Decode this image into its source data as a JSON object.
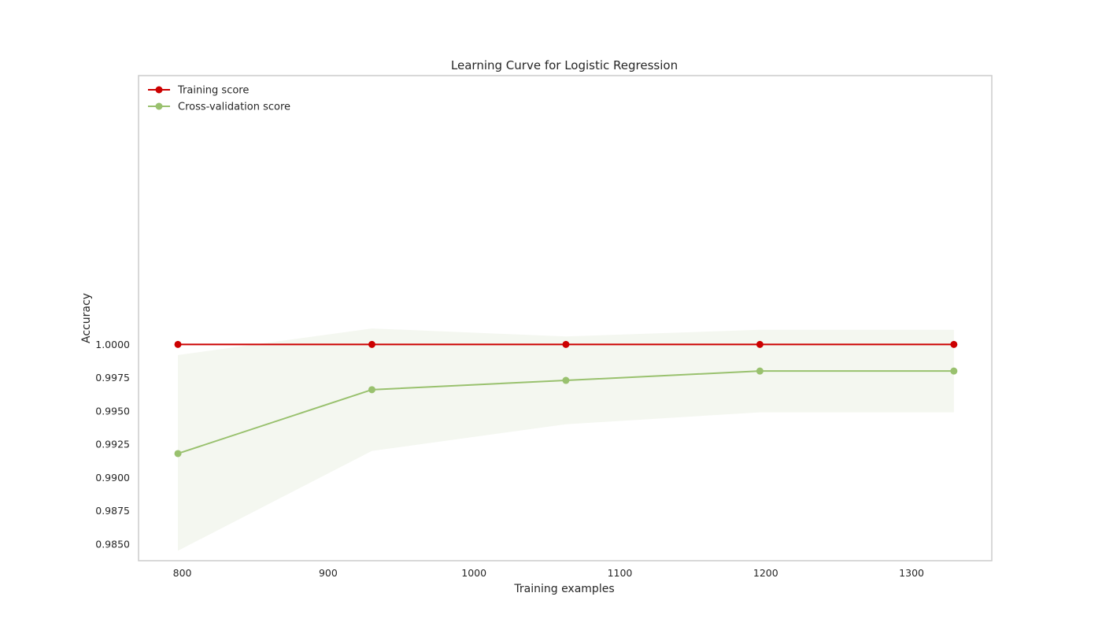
{
  "chart_data": {
    "type": "line",
    "title": "Learning Curve for Logistic Regression",
    "xlabel": "Training examples",
    "ylabel": "Accuracy",
    "xlim": [
      770,
      1355
    ],
    "ylim": [
      0.98375,
      1.0202
    ],
    "xticks": [
      800,
      900,
      1000,
      1100,
      1200,
      1300
    ],
    "xtick_labels": [
      "800",
      "900",
      "1000",
      "1100",
      "1200",
      "1300"
    ],
    "yticks": [
      0.985,
      0.9875,
      0.99,
      0.9925,
      0.995,
      0.9975,
      1.0
    ],
    "ytick_labels": [
      "0.9850",
      "0.9875",
      "0.9900",
      "0.9925",
      "0.9950",
      "0.9975",
      "1.0000"
    ],
    "grid": false,
    "legend_position": "top-left",
    "x": [
      797,
      930,
      1063,
      1196,
      1329
    ],
    "series": [
      {
        "name": "Training score",
        "color": "#cc0000",
        "values": [
          1.0,
          1.0,
          1.0,
          1.0,
          1.0
        ],
        "band_lower": [
          1.0,
          1.0,
          1.0,
          1.0,
          1.0
        ],
        "band_upper": [
          1.0,
          1.0,
          1.0,
          1.0,
          1.0
        ]
      },
      {
        "name": "Cross-validation score",
        "color": "#99c16e",
        "band_color": "#f4f7f0",
        "values": [
          0.9918,
          0.9966,
          0.9973,
          0.998,
          0.998
        ],
        "band_lower": [
          0.9845,
          0.992,
          0.994,
          0.9949,
          0.9949
        ],
        "band_upper": [
          0.9992,
          1.0012,
          1.0006,
          1.0011,
          1.0011
        ]
      }
    ]
  }
}
